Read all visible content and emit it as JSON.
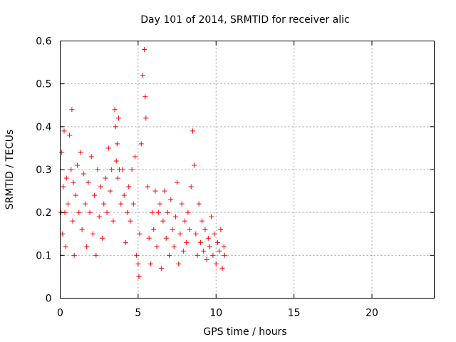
{
  "chart_data": {
    "type": "scatter",
    "title": "Day 101 of 2014, SRMTID for receiver alic",
    "xlabel": "GPS time / hours",
    "ylabel": "SRMTID / TECUs",
    "xlim": [
      0,
      24
    ],
    "ylim": [
      0,
      0.6
    ],
    "xticks": [
      0,
      5,
      10,
      15,
      20
    ],
    "yticks": [
      0,
      0.1,
      0.2,
      0.3,
      0.4,
      0.5,
      0.6
    ],
    "xtick_labels": [
      "0",
      "5",
      "10",
      "15",
      "20"
    ],
    "ytick_labels": [
      "0",
      "0.1",
      "0.2",
      "0.3",
      "0.4",
      "0.5",
      "0.6"
    ],
    "grid": true,
    "marker": "plus",
    "color": "#ff0000",
    "series": [
      {
        "name": "SRMTID",
        "x": [
          0.05,
          0.1,
          0.15,
          0.2,
          0.25,
          0.3,
          0.35,
          0.4,
          0.5,
          0.6,
          0.7,
          0.75,
          0.8,
          0.85,
          0.9,
          1.0,
          1.1,
          1.2,
          1.3,
          1.4,
          1.5,
          1.6,
          1.7,
          1.8,
          1.9,
          2.0,
          2.1,
          2.2,
          2.3,
          2.4,
          2.5,
          2.6,
          2.7,
          2.8,
          2.9,
          3.0,
          3.1,
          3.2,
          3.3,
          3.4,
          3.5,
          3.55,
          3.6,
          3.65,
          3.7,
          3.75,
          3.8,
          3.9,
          4.0,
          4.1,
          4.2,
          4.3,
          4.4,
          4.5,
          4.6,
          4.7,
          4.8,
          4.9,
          5.0,
          5.05,
          5.1,
          5.2,
          5.3,
          5.4,
          5.45,
          5.5,
          5.6,
          5.7,
          5.8,
          5.9,
          6.0,
          6.1,
          6.2,
          6.3,
          6.4,
          6.5,
          6.6,
          6.7,
          6.8,
          6.9,
          7.0,
          7.1,
          7.2,
          7.3,
          7.4,
          7.5,
          7.6,
          7.7,
          7.8,
          7.9,
          8.0,
          8.1,
          8.2,
          8.3,
          8.4,
          8.5,
          8.6,
          8.7,
          8.8,
          8.9,
          9.0,
          9.1,
          9.2,
          9.3,
          9.4,
          9.5,
          9.6,
          9.7,
          9.8,
          9.9,
          10.0,
          10.1,
          10.2,
          10.3,
          10.4,
          10.5,
          10.55
        ],
        "y": [
          0.2,
          0.34,
          0.15,
          0.26,
          0.39,
          0.2,
          0.12,
          0.28,
          0.22,
          0.38,
          0.3,
          0.44,
          0.18,
          0.27,
          0.1,
          0.24,
          0.31,
          0.2,
          0.34,
          0.16,
          0.29,
          0.22,
          0.12,
          0.27,
          0.2,
          0.33,
          0.15,
          0.24,
          0.1,
          0.3,
          0.19,
          0.26,
          0.14,
          0.22,
          0.28,
          0.2,
          0.35,
          0.25,
          0.3,
          0.18,
          0.44,
          0.4,
          0.32,
          0.36,
          0.28,
          0.42,
          0.3,
          0.22,
          0.3,
          0.24,
          0.13,
          0.2,
          0.26,
          0.18,
          0.3,
          0.22,
          0.33,
          0.1,
          0.08,
          0.05,
          0.15,
          0.36,
          0.52,
          0.58,
          0.47,
          0.42,
          0.26,
          0.14,
          0.08,
          0.2,
          0.16,
          0.25,
          0.12,
          0.2,
          0.22,
          0.07,
          0.18,
          0.25,
          0.14,
          0.2,
          0.1,
          0.23,
          0.16,
          0.12,
          0.19,
          0.27,
          0.08,
          0.15,
          0.22,
          0.11,
          0.18,
          0.13,
          0.2,
          0.16,
          0.26,
          0.39,
          0.31,
          0.15,
          0.1,
          0.22,
          0.13,
          0.18,
          0.11,
          0.16,
          0.09,
          0.14,
          0.12,
          0.19,
          0.1,
          0.15,
          0.08,
          0.13,
          0.11,
          0.16,
          0.07,
          0.12,
          0.1
        ]
      }
    ]
  }
}
